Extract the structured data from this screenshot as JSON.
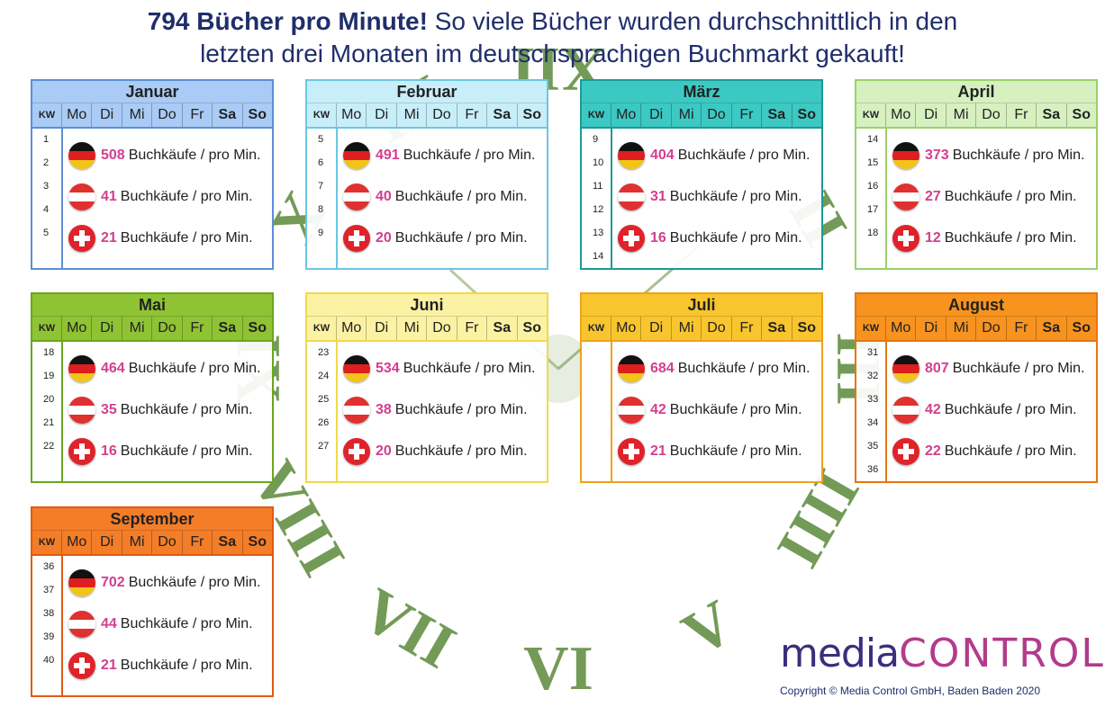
{
  "title": {
    "bold": "794 Bücher pro Minute!",
    "rest": " So viele Bücher wurden durchschnittlich in den",
    "line2": "letzten drei Monaten im deutschsprachigen Buchmarkt gekauft!"
  },
  "clock_numerals": [
    "XII",
    "I",
    "II",
    "III",
    "IIII",
    "V",
    "VI",
    "VII",
    "VIII",
    "IX",
    "X",
    "XI"
  ],
  "unit": "Buchkäufe / pro Min.",
  "day_header": [
    "KW",
    "Mo",
    "Di",
    "Mi",
    "Do",
    "Fr",
    "Sa",
    "So"
  ],
  "months": [
    {
      "name": "Januar",
      "weeks": [
        "1",
        "2",
        "3",
        "4",
        "5"
      ],
      "de": "508",
      "at": "41",
      "ch": "21",
      "color": "#5b8fd6",
      "light": "#a9cbf5"
    },
    {
      "name": "Februar",
      "weeks": [
        "5",
        "6",
        "7",
        "8",
        "9"
      ],
      "de": "491",
      "at": "40",
      "ch": "20",
      "color": "#6cc6e3",
      "light": "#c8eef9"
    },
    {
      "name": "März",
      "weeks": [
        "9",
        "10",
        "11",
        "12",
        "13",
        "14"
      ],
      "de": "404",
      "at": "31",
      "ch": "16",
      "color": "#1c9a96",
      "light": "#3cc8c3"
    },
    {
      "name": "April",
      "weeks": [
        "14",
        "15",
        "16",
        "17",
        "18"
      ],
      "de": "373",
      "at": "27",
      "ch": "12",
      "color": "#9ad16a",
      "light": "#d6f0c0"
    },
    {
      "name": "Mai",
      "weeks": [
        "18",
        "19",
        "20",
        "21",
        "22"
      ],
      "de": "464",
      "at": "35",
      "ch": "16",
      "color": "#6aa61e",
      "light": "#8fc334"
    },
    {
      "name": "Juni",
      "weeks": [
        "23",
        "24",
        "25",
        "26",
        "27"
      ],
      "de": "534",
      "at": "38",
      "ch": "20",
      "color": "#efd94a",
      "light": "#fcf2a4"
    },
    {
      "name": "Juli",
      "weeks": [
        "",
        "",
        "",
        "",
        "",
        ""
      ],
      "de": "684",
      "at": "42",
      "ch": "21",
      "color": "#eea21a",
      "light": "#f9c52e"
    },
    {
      "name": "August",
      "weeks": [
        "31",
        "32",
        "33",
        "34",
        "35",
        "36"
      ],
      "de": "807",
      "at": "42",
      "ch": "22",
      "color": "#e5760f",
      "light": "#f7931e"
    },
    {
      "name": "September",
      "weeks": [
        "36",
        "37",
        "38",
        "39",
        "40"
      ],
      "de": "702",
      "at": "44",
      "ch": "21",
      "color": "#e05a12",
      "light": "#f47d28"
    }
  ],
  "logo": {
    "media": "media",
    "control": "CONTROL"
  },
  "copyright": "Copyright © Media Control GmbH, Baden Baden  2020"
}
